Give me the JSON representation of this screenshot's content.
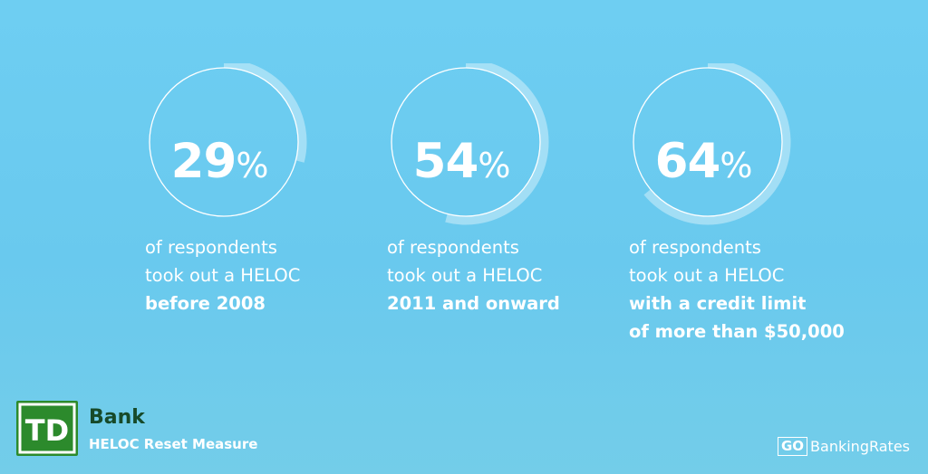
{
  "chart_data": {
    "type": "donut",
    "items": [
      {
        "value": 29,
        "number_text": "29",
        "unit": "%",
        "caption_lines": [
          "of respondents",
          "took out a HELOC"
        ],
        "caption_bold": [
          "before 2008"
        ]
      },
      {
        "value": 54,
        "number_text": "54",
        "unit": "%",
        "caption_lines": [
          "of respondents",
          "took out a HELOC"
        ],
        "caption_bold": [
          "2011 and onward"
        ]
      },
      {
        "value": 64,
        "number_text": "64",
        "unit": "%",
        "caption_lines": [
          "of respondents",
          "took out a HELOC"
        ],
        "caption_bold": [
          "with a credit limit",
          "of more than $50,000"
        ]
      }
    ]
  },
  "brand": {
    "logo_text": "TD",
    "name": "Bank",
    "subtitle": "HELOC Reset Measure"
  },
  "source_logo": {
    "go": "GO",
    "rest": "BankingRates"
  },
  "colors": {
    "background": "#6ecef2",
    "ring": "#ffffff",
    "td_green": "#2c8a2c",
    "bank_text": "#174a2a"
  }
}
